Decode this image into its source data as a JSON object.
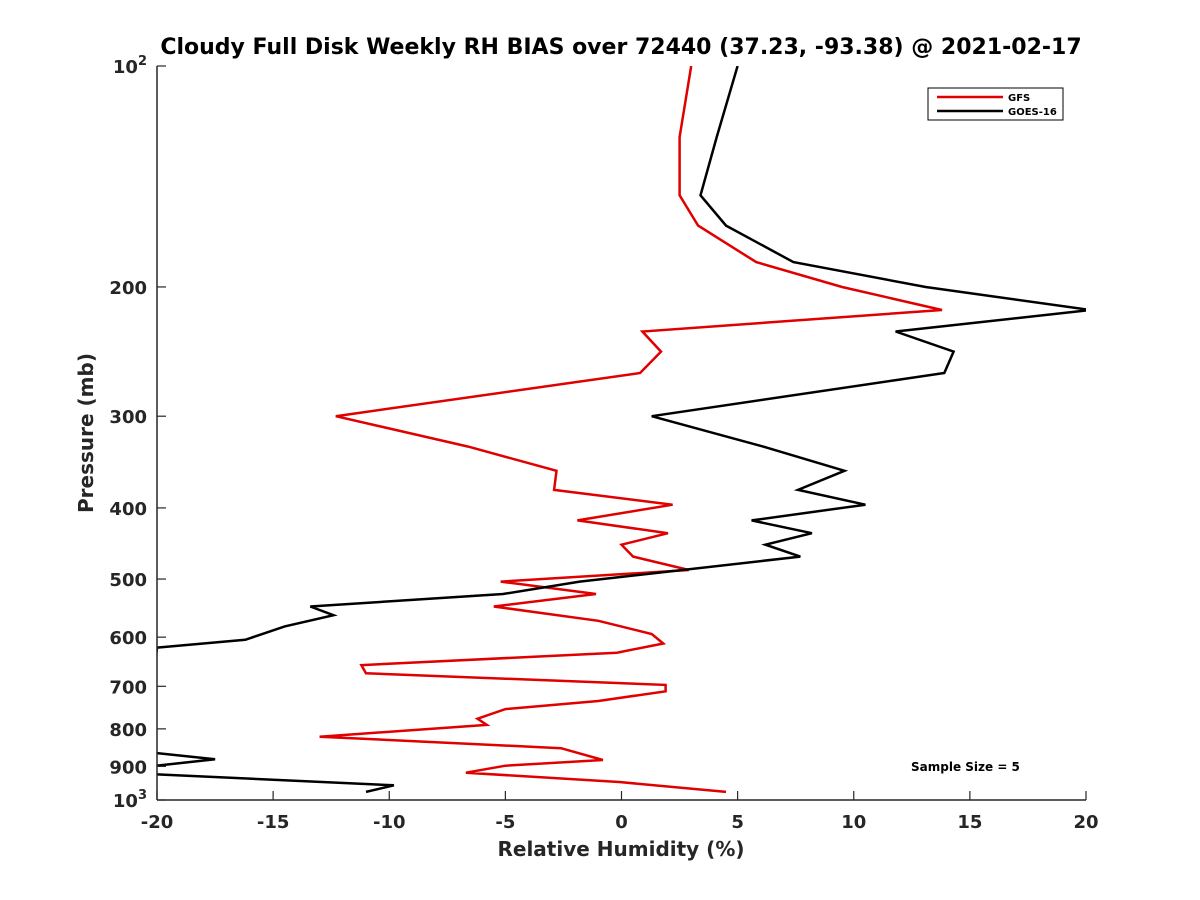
{
  "chart_data": {
    "type": "line",
    "title": "Cloudy Full Disk Weekly RH BIAS over 72440 (37.23, -93.38) @ 2021-02-17",
    "xlabel": "Relative Humidity (%)",
    "ylabel": "Pressure (mb)",
    "xlim": [
      -20,
      20
    ],
    "ylim": [
      100,
      1000
    ],
    "yscale": "log",
    "y_inverted": true,
    "grid": false,
    "legend_position": "top-right",
    "x_ticks": [
      -20,
      -15,
      -10,
      -5,
      0,
      5,
      10,
      15,
      20
    ],
    "x_tick_labels": [
      "-20",
      "-15",
      "-10",
      "-5",
      "0",
      "5",
      "10",
      "15",
      "20"
    ],
    "y_ticks": [
      {
        "value": 100,
        "base": "10",
        "exp": "2"
      },
      {
        "value": 200,
        "label": "200"
      },
      {
        "value": 300,
        "label": "300"
      },
      {
        "value": 400,
        "label": "400"
      },
      {
        "value": 500,
        "label": "500"
      },
      {
        "value": 600,
        "label": "600"
      },
      {
        "value": 700,
        "label": "700"
      },
      {
        "value": 800,
        "label": "800"
      },
      {
        "value": 900,
        "label": "900"
      },
      {
        "value": 1000,
        "base": "10",
        "exp": "3"
      }
    ],
    "annotation": "Sample Size = 5",
    "series": [
      {
        "name": "GFS",
        "color": "#e00000",
        "points": [
          [
            3.0,
            100
          ],
          [
            2.5,
            125
          ],
          [
            2.5,
            150
          ],
          [
            3.3,
            165
          ],
          [
            5.8,
            185
          ],
          [
            9.5,
            200
          ],
          [
            13.8,
            215
          ],
          [
            0.9,
            230
          ],
          [
            1.7,
            245
          ],
          [
            0.8,
            262
          ],
          [
            -12.3,
            300
          ],
          [
            -6.6,
            330
          ],
          [
            -2.8,
            356
          ],
          [
            -2.9,
            378
          ],
          [
            2.2,
            396
          ],
          [
            -1.9,
            416
          ],
          [
            2.0,
            433
          ],
          [
            0.0,
            449
          ],
          [
            0.5,
            466
          ],
          [
            2.9,
            486
          ],
          [
            -5.2,
            504
          ],
          [
            -1.1,
            524
          ],
          [
            -5.5,
            545
          ],
          [
            -1.0,
            570
          ],
          [
            1.3,
            594
          ],
          [
            1.8,
            612
          ],
          [
            -0.2,
            630
          ],
          [
            -11.2,
            655
          ],
          [
            -11.0,
            672
          ],
          [
            1.9,
            697
          ],
          [
            1.9,
            711
          ],
          [
            -1.0,
            733
          ],
          [
            -5.0,
            752
          ],
          [
            -6.2,
            775
          ],
          [
            -5.8,
            790
          ],
          [
            -13.0,
            820
          ],
          [
            -2.6,
            850
          ],
          [
            -0.8,
            882
          ],
          [
            -5.0,
            898
          ],
          [
            -6.7,
            918
          ],
          [
            -0.1,
            945
          ],
          [
            4.5,
            975
          ]
        ]
      },
      {
        "name": "GOES-16",
        "color": "#000000",
        "points": [
          [
            5.0,
            100
          ],
          [
            4.1,
            125
          ],
          [
            3.4,
            150
          ],
          [
            4.5,
            165
          ],
          [
            7.4,
            185
          ],
          [
            13.1,
            200
          ],
          [
            20.2,
            215
          ],
          [
            11.8,
            230
          ],
          [
            14.3,
            245
          ],
          [
            13.9,
            262
          ],
          [
            1.3,
            300
          ],
          [
            6.1,
            330
          ],
          [
            9.6,
            356
          ],
          [
            7.6,
            378
          ],
          [
            10.5,
            396
          ],
          [
            5.6,
            416
          ],
          [
            8.2,
            433
          ],
          [
            6.2,
            449
          ],
          [
            7.7,
            466
          ],
          [
            -1.8,
            504
          ],
          [
            -5.1,
            524
          ],
          [
            -13.4,
            545
          ],
          [
            -12.4,
            560
          ],
          [
            -14.5,
            580
          ],
          [
            -16.2,
            605
          ],
          [
            -20.0,
            620
          ],
          [
            -20.5,
            860
          ],
          [
            -17.5,
            880
          ],
          [
            -20.3,
            900
          ],
          [
            -20.3,
            922
          ],
          [
            -9.8,
            955
          ],
          [
            -11.0,
            975
          ]
        ]
      }
    ]
  }
}
